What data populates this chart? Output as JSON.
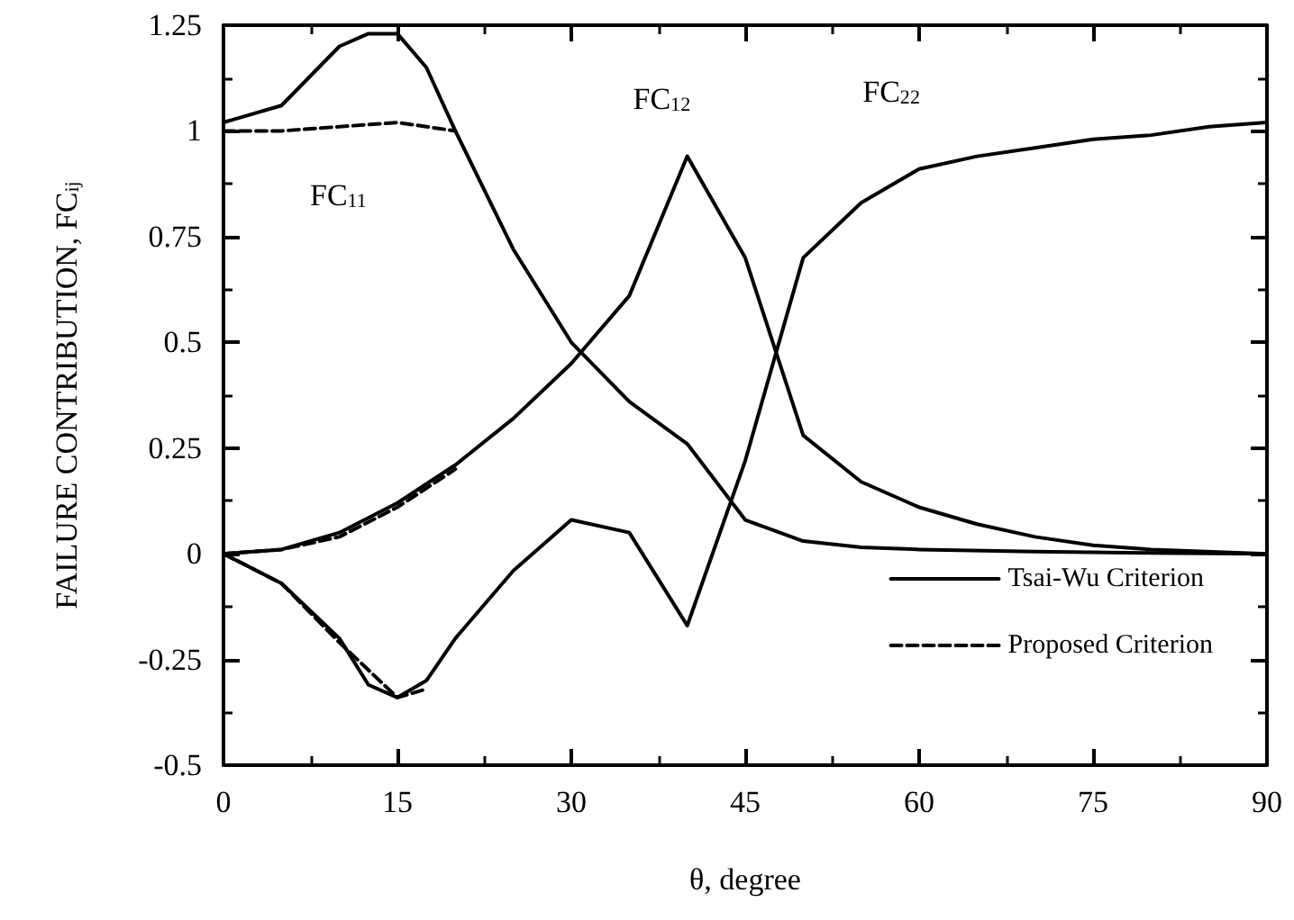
{
  "chart_data": {
    "type": "line",
    "xlabel": "θ, degree",
    "ylabel": "FAILURE CONTRIBUTION, FC$_{ij}$",
    "xlim": [
      0,
      90
    ],
    "xticks": [
      0,
      15,
      30,
      45,
      60,
      75,
      90
    ],
    "ylim": [
      -0.5,
      1.25
    ],
    "yticks": [
      -0.5,
      -0.25,
      0,
      0.25,
      0.5,
      0.75,
      1,
      1.25
    ],
    "grid": false,
    "legend": "bottom right",
    "marker": "none",
    "annotations": [
      "FC$_{11}$",
      "FC$_{12}$",
      "FC$_{22}$"
    ],
    "series": [
      {
        "name": "Tsai-Wu Criterion",
        "color": "#000000",
        "line_style": "solid",
        "x": [
          0,
          5,
          10,
          12.5,
          15,
          17.5,
          20,
          25,
          30,
          35,
          40,
          45,
          50,
          55,
          60,
          70,
          80,
          90
        ],
        "values": [
          1.02,
          1.06,
          1.2,
          1.23,
          1.23,
          1.15,
          1.0,
          0.72,
          0.5,
          0.36,
          0.26,
          0.08,
          0.03,
          0.015,
          0.01,
          0.005,
          0.002,
          0
        ]
      },
      {
        "color": "#000000",
        "line_style": "solid",
        "x": [
          0,
          5,
          10,
          15,
          20,
          25,
          30,
          35,
          40,
          45,
          50,
          55,
          60,
          65,
          70,
          75,
          80,
          90
        ],
        "values": [
          0,
          0.01,
          0.05,
          0.12,
          0.21,
          0.32,
          0.45,
          0.61,
          0.94,
          0.7,
          0.28,
          0.17,
          0.11,
          0.07,
          0.04,
          0.02,
          0.01,
          0
        ]
      },
      {
        "color": "#000000",
        "line_style": "solid",
        "x": [
          0,
          5,
          10,
          12.5,
          15,
          17.5,
          20,
          25,
          30,
          35,
          40,
          45,
          50,
          55,
          60,
          65,
          70,
          75,
          80,
          85,
          90
        ],
        "values": [
          0,
          -0.07,
          -0.2,
          -0.31,
          -0.34,
          -0.3,
          -0.2,
          -0.04,
          0.08,
          0.05,
          -0.17,
          0.22,
          0.7,
          0.83,
          0.91,
          0.94,
          0.96,
          0.98,
          0.99,
          1.01,
          1.02
        ]
      },
      {
        "name": "Proposed Criterion",
        "color": "#000000",
        "line_style": "dashed",
        "x": [
          0,
          5,
          10,
          15,
          20
        ],
        "values": [
          1.0,
          1.0,
          1.01,
          1.02,
          1.0
        ]
      },
      {
        "color": "#000000",
        "line_style": "dashed",
        "x": [
          0,
          5,
          10,
          15,
          20
        ],
        "values": [
          0,
          0.01,
          0.04,
          0.11,
          0.2
        ]
      },
      {
        "color": "#000000",
        "line_style": "dashed",
        "x": [
          0,
          5,
          10,
          15,
          17.5
        ],
        "values": [
          0,
          -0.07,
          -0.21,
          -0.34,
          -0.32
        ]
      }
    ]
  }
}
